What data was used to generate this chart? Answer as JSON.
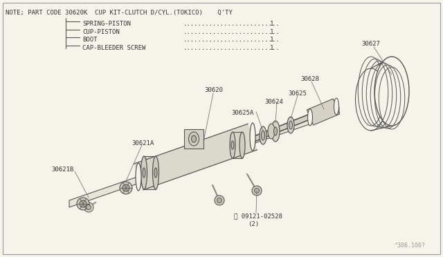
{
  "bg_color": "#f5f3ea",
  "line_color": "#555555",
  "text_color": "#333333",
  "title_line1": "NOTE; PART CODE 30620K  CUP KIT-CLUTCH D/CYL.(TOKICO)    Q'TY",
  "legend_items": [
    {
      "label": "SPRING-PISTON",
      "qty": "1"
    },
    {
      "label": "CUP-PISTON",
      "qty": "1"
    },
    {
      "label": "BOOT",
      "qty": "1"
    },
    {
      "label": "CAP-BLEEDER SCREW",
      "qty": "1"
    }
  ],
  "footer_text": "^306.100?",
  "font_size_title": 6.5,
  "font_size_labels": 6.5,
  "font_size_footer": 6.0
}
